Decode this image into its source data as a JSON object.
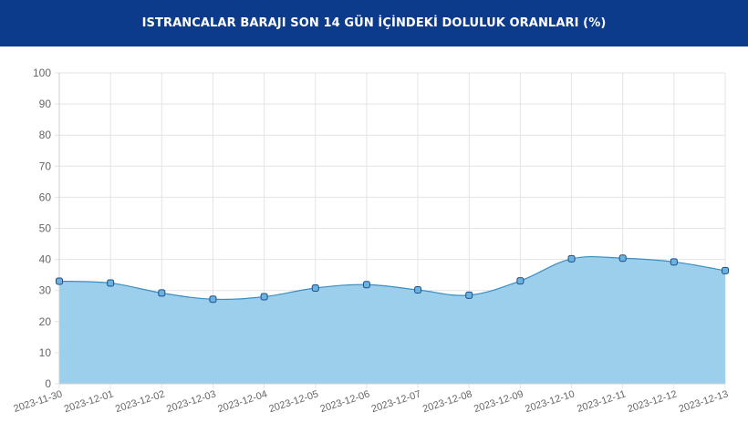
{
  "header": {
    "title": "ISTRANCALAR BARAJI SON 14 GÜN İÇİNDEKİ DOLULUK ORANLARI (%)"
  },
  "colors": {
    "header_bg": "#0d3b8c",
    "area_fill": "#9ccfec",
    "line": "#3b8ec2",
    "point_fill": "#6ab2e0",
    "point_stroke": "#1f4f86",
    "grid": "#e4e4e4"
  },
  "chart_data": {
    "type": "area",
    "title": "",
    "xlabel": "",
    "ylabel": "",
    "ylim": [
      0,
      100
    ],
    "yticks": [
      0,
      10,
      20,
      30,
      40,
      50,
      60,
      70,
      80,
      90,
      100
    ],
    "grid": true,
    "legend": "none",
    "categories": [
      "2023-11-30",
      "2023-12-01",
      "2023-12-02",
      "2023-12-03",
      "2023-12-04",
      "2023-12-05",
      "2023-12-06",
      "2023-12-07",
      "2023-12-08",
      "2023-12-09",
      "2023-12-10",
      "2023-12-11",
      "2023-12-12",
      "2023-12-13"
    ],
    "series": [
      {
        "values": [
          33.0,
          32.4,
          29.2,
          27.2,
          28.0,
          30.8,
          31.9,
          30.2,
          28.5,
          33.1,
          40.2,
          40.4,
          39.2,
          36.4
        ]
      }
    ]
  }
}
